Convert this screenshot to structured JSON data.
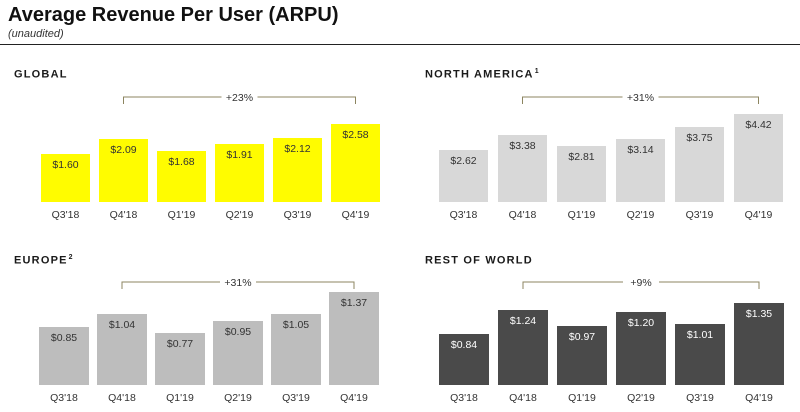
{
  "page": {
    "title": "Average Revenue Per User (ARPU)",
    "subtitle": "(unaudited)"
  },
  "chart_data": [
    {
      "id": "global",
      "type": "bar",
      "title": "GLOBAL",
      "footnote": "",
      "categories": [
        "Q3'18",
        "Q4'18",
        "Q1'19",
        "Q2'19",
        "Q3'19",
        "Q4'19"
      ],
      "values": [
        1.6,
        2.09,
        1.68,
        1.91,
        2.12,
        2.58
      ],
      "value_labels": [
        "$1.60",
        "$2.09",
        "$1.68",
        "$1.91",
        "$2.12",
        "$2.58"
      ],
      "growth_label": "+23%",
      "growth_from": "Q4'18",
      "growth_to": "Q4'19",
      "bar_color": "#FFFC00",
      "label_color": "#333333",
      "ylim": [
        0,
        2.58
      ]
    },
    {
      "id": "north-america",
      "type": "bar",
      "title": "NORTH AMERICA",
      "footnote": "1",
      "categories": [
        "Q3'18",
        "Q4'18",
        "Q1'19",
        "Q2'19",
        "Q3'19",
        "Q4'19"
      ],
      "values": [
        2.62,
        3.38,
        2.81,
        3.14,
        3.75,
        4.42
      ],
      "value_labels": [
        "$2.62",
        "$3.38",
        "$2.81",
        "$3.14",
        "$3.75",
        "$4.42"
      ],
      "growth_label": "+31%",
      "growth_from": "Q4'18",
      "growth_to": "Q4'19",
      "bar_color": "#D8D8D8",
      "label_color": "#333333",
      "ylim": [
        0,
        4.42
      ]
    },
    {
      "id": "europe",
      "type": "bar",
      "title": "EUROPE",
      "footnote": "2",
      "categories": [
        "Q3'18",
        "Q4'18",
        "Q1'19",
        "Q2'19",
        "Q3'19",
        "Q4'19"
      ],
      "values": [
        0.85,
        1.04,
        0.77,
        0.95,
        1.05,
        1.37
      ],
      "value_labels": [
        "$0.85",
        "$1.04",
        "$0.77",
        "$0.95",
        "$1.05",
        "$1.37"
      ],
      "growth_label": "+31%",
      "growth_from": "Q4'18",
      "growth_to": "Q4'19",
      "bar_color": "#BDBDBD",
      "label_color": "#333333",
      "ylim": [
        0,
        1.37
      ]
    },
    {
      "id": "rest-of-world",
      "type": "bar",
      "title": "REST OF WORLD",
      "footnote": "",
      "categories": [
        "Q3'18",
        "Q4'18",
        "Q1'19",
        "Q2'19",
        "Q3'19",
        "Q4'19"
      ],
      "values": [
        0.84,
        1.24,
        0.97,
        1.2,
        1.01,
        1.35
      ],
      "value_labels": [
        "$0.84",
        "$1.24",
        "$0.97",
        "$1.20",
        "$1.01",
        "$1.35"
      ],
      "growth_label": "+9%",
      "growth_from": "Q4'18",
      "growth_to": "Q4'19",
      "bar_color": "#4A4A4A",
      "label_color": "#FFFFFF",
      "ylim": [
        0,
        1.35
      ]
    }
  ]
}
